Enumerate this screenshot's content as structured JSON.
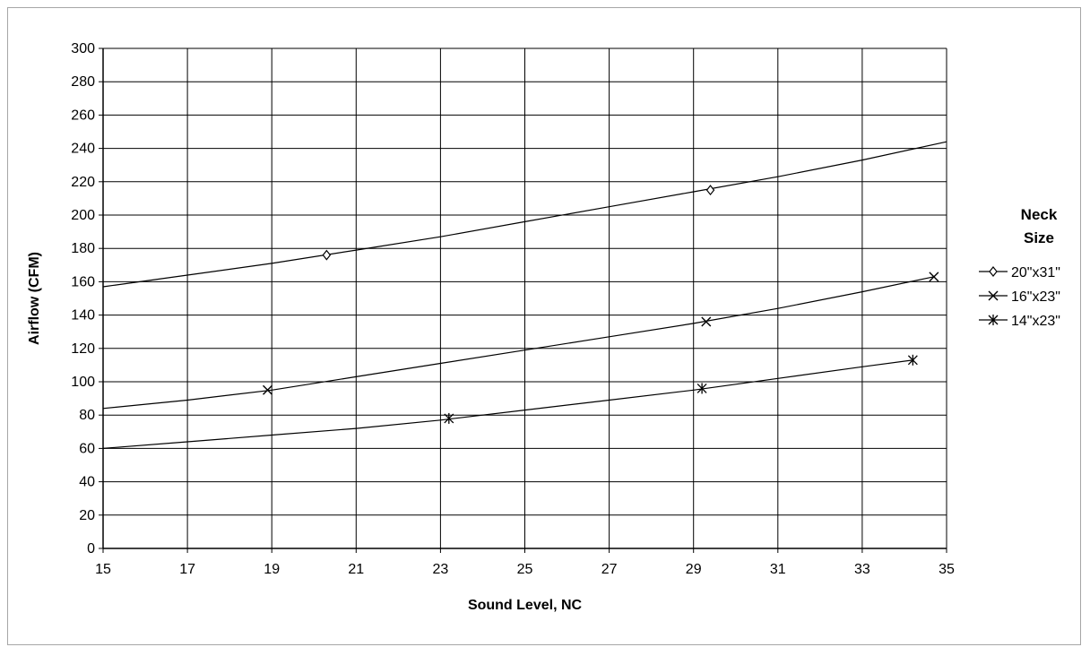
{
  "chart_data": {
    "type": "scatter",
    "title": "",
    "xlabel": "Sound Level, NC",
    "ylabel": "Airflow (CFM)",
    "xlim": [
      15,
      35
    ],
    "ylim": [
      0,
      300
    ],
    "xticks": [
      15,
      17,
      19,
      21,
      23,
      25,
      27,
      29,
      31,
      33,
      35
    ],
    "yticks": [
      0,
      20,
      40,
      60,
      80,
      100,
      120,
      140,
      160,
      180,
      200,
      220,
      240,
      260,
      280,
      300
    ],
    "grid": true,
    "legend": {
      "title_line1": "Neck",
      "title_line2": "Size",
      "placement": "right"
    },
    "series": [
      {
        "name": "20\"x31\"",
        "marker": "diamond",
        "points": [
          [
            20.3,
            176
          ],
          [
            29.4,
            215
          ]
        ],
        "trend": [
          [
            15,
            157
          ],
          [
            17,
            164
          ],
          [
            19,
            171
          ],
          [
            21,
            179
          ],
          [
            23,
            187
          ],
          [
            25,
            196
          ],
          [
            27,
            205
          ],
          [
            29,
            214
          ],
          [
            31,
            223
          ],
          [
            33,
            233
          ],
          [
            35,
            244
          ]
        ]
      },
      {
        "name": "16\"x23\"",
        "marker": "x",
        "points": [
          [
            18.9,
            95
          ],
          [
            29.3,
            136
          ],
          [
            34.7,
            163
          ]
        ],
        "trend": [
          [
            15,
            84
          ],
          [
            17,
            89
          ],
          [
            19,
            95
          ],
          [
            21,
            103
          ],
          [
            23,
            111
          ],
          [
            25,
            119
          ],
          [
            27,
            127
          ],
          [
            29,
            135
          ],
          [
            31,
            144
          ],
          [
            33,
            154
          ],
          [
            34.7,
            163
          ]
        ]
      },
      {
        "name": "14\"x23\"",
        "marker": "star",
        "points": [
          [
            23.2,
            78
          ],
          [
            29.2,
            96
          ],
          [
            34.2,
            113
          ]
        ],
        "trend": [
          [
            15,
            60
          ],
          [
            17,
            64
          ],
          [
            19,
            68
          ],
          [
            21,
            72
          ],
          [
            23,
            77
          ],
          [
            25,
            83
          ],
          [
            27,
            89
          ],
          [
            29,
            95
          ],
          [
            31,
            102
          ],
          [
            33,
            109
          ],
          [
            34.2,
            113
          ]
        ]
      }
    ]
  }
}
